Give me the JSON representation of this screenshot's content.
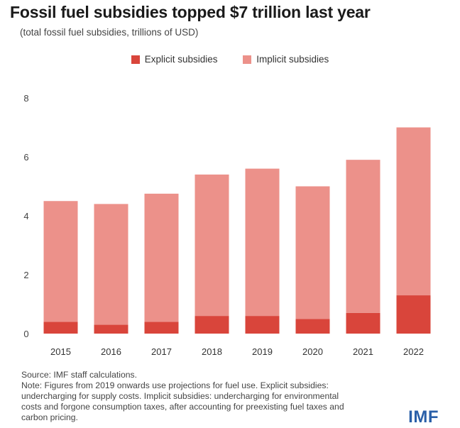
{
  "chart_data": {
    "type": "bar",
    "stacked": true,
    "title": "Fossil fuel subsidies topped $7 trillion last year",
    "subtitle": "(total fossil fuel subsidies, trillions of USD)",
    "categories": [
      "2015",
      "2016",
      "2017",
      "2018",
      "2019",
      "2020",
      "2021",
      "2022"
    ],
    "series": [
      {
        "name": "Explicit subsidies",
        "color": "#d9453b",
        "values": [
          0.4,
          0.3,
          0.4,
          0.6,
          0.6,
          0.5,
          0.7,
          1.3
        ]
      },
      {
        "name": "Implicit subsidies",
        "color": "#ec918a",
        "values": [
          4.1,
          4.1,
          4.35,
          4.8,
          5.0,
          4.5,
          5.2,
          5.7
        ]
      }
    ],
    "ylim": [
      0,
      8
    ],
    "yticks": [
      0,
      2,
      4,
      6,
      8
    ],
    "grid": false,
    "legend_position": "top-center"
  },
  "footnotes": {
    "source": "Source: IMF staff calculations.",
    "note_lines": [
      "Note: Figures from 2019 onwards use projections for fuel use. Explicit subsidies:",
      "undercharging for supply costs. Implicit subsidies: undercharging for environmental",
      "costs and forgone consumption taxes, after accounting for preexisting fuel taxes and",
      "carbon pricing."
    ]
  },
  "brand": {
    "logo_text": "IMF",
    "color": "#2a5fa8"
  }
}
